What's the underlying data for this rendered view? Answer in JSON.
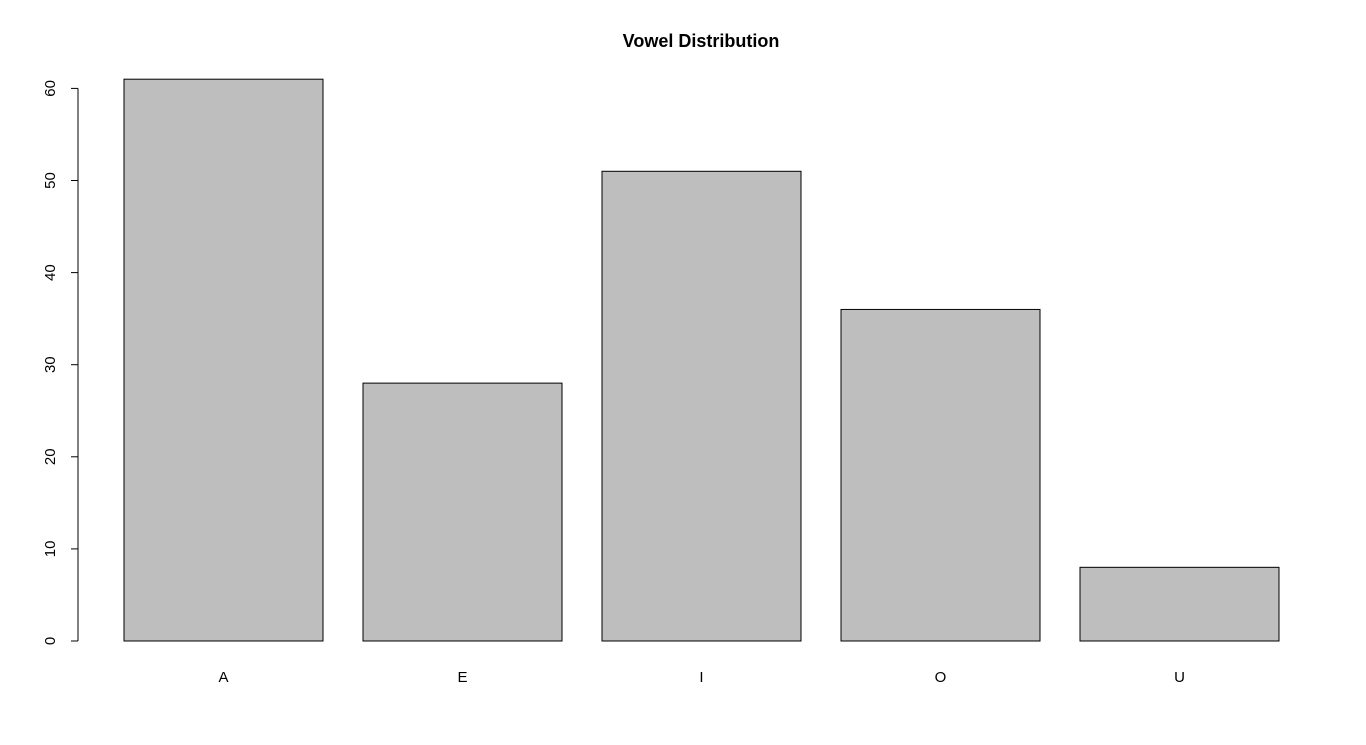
{
  "chart_data": {
    "type": "bar",
    "title": "Vowel Distribution",
    "xlabel": "",
    "ylabel": "",
    "categories": [
      "A",
      "E",
      "I",
      "O",
      "U"
    ],
    "values": [
      61,
      28,
      51,
      36,
      8
    ],
    "ylim": [
      0,
      60
    ],
    "yticks": [
      0,
      10,
      20,
      30,
      40,
      50,
      60
    ],
    "bar_color": "#bebebe",
    "grid": false,
    "legend": "none"
  }
}
